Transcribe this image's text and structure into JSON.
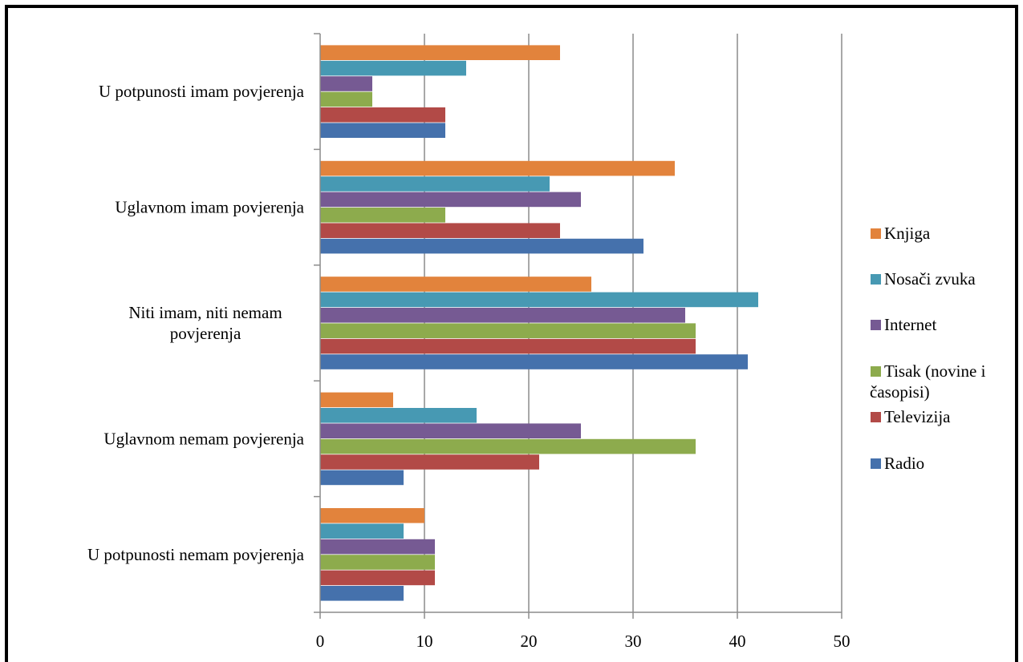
{
  "chart_data": {
    "type": "bar",
    "orientation": "horizontal",
    "categories": [
      "U potpunosti imam povjerenja",
      "Uglavnom imam povjerenja",
      "Niti imam, niti nemam povjerenja",
      "Uglavnom nemam povjerenja",
      "U potpunosti nemam povjerenja"
    ],
    "category_label_lines": [
      [
        "U potpunosti imam povjerenja"
      ],
      [
        "Uglavnom imam povjerenja"
      ],
      [
        "Niti imam, niti nemam",
        "povjerenja"
      ],
      [
        "Uglavnom nemam povjerenja"
      ],
      [
        "U potpunosti nemam povjerenja"
      ]
    ],
    "series": [
      {
        "name": "Knjiga",
        "color": "#E2833C",
        "values": [
          23,
          34,
          26,
          7,
          10
        ]
      },
      {
        "name": "Nosači zvuka",
        "color": "#4799B3",
        "values": [
          14,
          22,
          42,
          15,
          8
        ]
      },
      {
        "name": "Internet",
        "color": "#765A93",
        "values": [
          5,
          25,
          35,
          25,
          11
        ]
      },
      {
        "name": "Tisak (novine i časopisi)",
        "color": "#8DAB4D",
        "values": [
          5,
          12,
          36,
          36,
          11
        ]
      },
      {
        "name": "Televizija",
        "color": "#B24A47",
        "values": [
          12,
          23,
          36,
          21,
          11
        ]
      },
      {
        "name": "Radio",
        "color": "#4571AC",
        "values": [
          12,
          31,
          41,
          8,
          8
        ]
      }
    ],
    "legend_entries": [
      {
        "name": "Knjiga",
        "lines": [
          "Knjiga"
        ],
        "color": "#E2833C"
      },
      {
        "name": "Nosači zvuka",
        "lines": [
          "Nosači zvuka"
        ],
        "color": "#4799B3"
      },
      {
        "name": "Internet",
        "lines": [
          "Internet"
        ],
        "color": "#765A93"
      },
      {
        "name": "Tisak (novine i časopisi)",
        "lines": [
          "Tisak (novine i",
          "časopisi)"
        ],
        "color": "#8DAB4D"
      },
      {
        "name": "Televizija",
        "lines": [
          "Televizija"
        ],
        "color": "#B24A47"
      },
      {
        "name": "Radio",
        "lines": [
          "Radio"
        ],
        "color": "#4571AC"
      }
    ],
    "xlim": [
      0,
      50
    ],
    "xticks": [
      0,
      10,
      20,
      30,
      40,
      50
    ],
    "grid": true,
    "legend_position": "right",
    "title": "",
    "xlabel": "",
    "ylabel": ""
  }
}
